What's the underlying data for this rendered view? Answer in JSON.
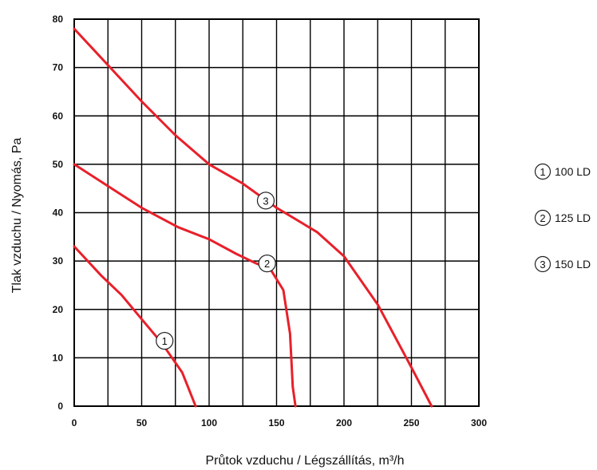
{
  "chart_data": {
    "type": "line",
    "title": "",
    "xlabel": "Průtok vzduchu / Légszállítás, m³/h",
    "ylabel": "Tlak vzduchu / Nyomás, Pa",
    "xlim": [
      0,
      300
    ],
    "ylim": [
      0,
      80
    ],
    "x_ticks": [
      0,
      50,
      100,
      150,
      200,
      250,
      300
    ],
    "x_tick_labels": [
      "0",
      "50",
      "100",
      "150",
      "200",
      "250",
      "300"
    ],
    "y_ticks": [
      0,
      10,
      20,
      30,
      40,
      50,
      60,
      70,
      80
    ],
    "y_tick_labels": [
      "0",
      "10",
      "20",
      "30",
      "40",
      "50",
      "60",
      "70",
      "80"
    ],
    "x_grid_step": 25,
    "y_grid_step": 10,
    "grid": true,
    "legend_position": "right",
    "line_color": "#e8202a",
    "series": [
      {
        "name": "100 LD",
        "marker": "1",
        "marker_at": [
          67,
          13.5
        ],
        "points": [
          [
            0,
            33
          ],
          [
            20,
            27
          ],
          [
            35,
            23
          ],
          [
            50,
            18
          ],
          [
            65,
            13
          ],
          [
            80,
            7
          ],
          [
            85,
            3.5
          ],
          [
            90,
            0
          ]
        ]
      },
      {
        "name": "125 LD",
        "marker": "2",
        "marker_at": [
          143,
          29.5
        ],
        "points": [
          [
            0,
            50
          ],
          [
            25,
            45.5
          ],
          [
            50,
            41
          ],
          [
            77,
            37
          ],
          [
            100,
            34.5
          ],
          [
            120,
            31.5
          ],
          [
            135,
            29.5
          ],
          [
            145,
            28.5
          ],
          [
            155,
            24
          ],
          [
            160,
            15
          ],
          [
            162,
            4
          ],
          [
            164,
            0
          ]
        ]
      },
      {
        "name": "150 LD",
        "marker": "3",
        "marker_at": [
          142,
          42.5
        ],
        "points": [
          [
            0,
            78
          ],
          [
            25,
            70.5
          ],
          [
            50,
            63
          ],
          [
            75,
            56
          ],
          [
            100,
            50
          ],
          [
            125,
            46
          ],
          [
            150,
            41
          ],
          [
            180,
            36
          ],
          [
            200,
            31
          ],
          [
            225,
            21
          ],
          [
            250,
            8
          ],
          [
            265,
            0
          ]
        ]
      }
    ]
  }
}
